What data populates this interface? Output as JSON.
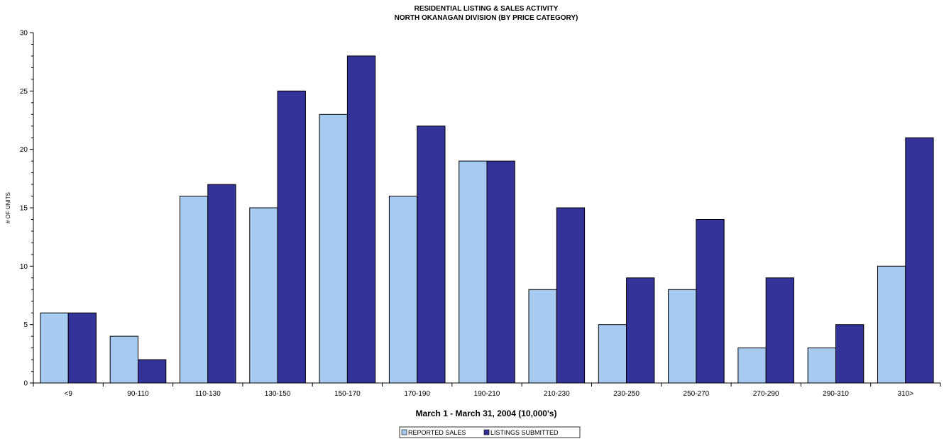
{
  "chart_data": {
    "type": "bar",
    "title": "RESIDENTIAL LISTING & SALES ACTIVITY",
    "subtitle": "NORTH OKANAGAN DIVISION (BY PRICE CATEGORY)",
    "xlabel": "March 1 - March 31, 2004 (10,000's)",
    "ylabel": "# OF UNITS",
    "ylim": [
      0,
      30
    ],
    "yticks": [
      "0",
      "5",
      "10",
      "15",
      "20",
      "25",
      "30"
    ],
    "grid": false,
    "legend_position": "bottom",
    "categories": [
      "<9",
      "90-110",
      "110-130",
      "130-150",
      "150-170",
      "170-190",
      "190-210",
      "210-230",
      "230-250",
      "250-270",
      "270-290",
      "290-310",
      "310>"
    ],
    "series": [
      {
        "name": "REPORTED SALES",
        "color": "#a6caf0",
        "values": [
          6,
          4,
          16,
          15,
          23,
          16,
          19,
          8,
          5,
          8,
          3,
          3,
          10
        ]
      },
      {
        "name": "LISTINGS SUBMITTED",
        "color": "#333399",
        "values": [
          6,
          2,
          17,
          25,
          28,
          22,
          19,
          15,
          9,
          14,
          9,
          5,
          21
        ]
      }
    ]
  }
}
